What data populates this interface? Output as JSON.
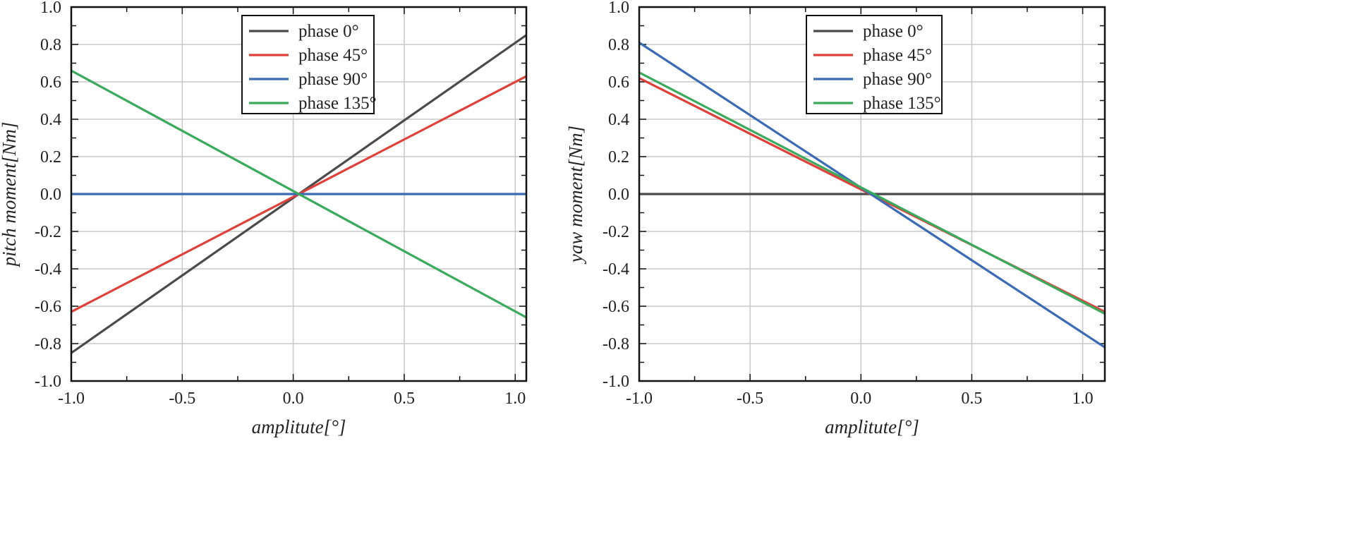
{
  "chart_data": [
    {
      "type": "line",
      "title": "",
      "xlabel": "amplitute[°]",
      "ylabel": "pitch moment[Nm]",
      "xlim": [
        -1.0,
        1.05
      ],
      "ylim": [
        -1.0,
        1.0
      ],
      "x_ticks": [
        -1.0,
        -0.5,
        0.0,
        0.5,
        1.0
      ],
      "x_tick_labels": [
        "-1.0",
        "-0.5",
        "0.0",
        "0.5",
        "1.0"
      ],
      "y_ticks": [
        1.0,
        0.8,
        0.6,
        0.4,
        0.2,
        0.0,
        -0.2,
        -0.4,
        -0.6,
        -0.8,
        -1.0
      ],
      "y_tick_labels": [
        "1.0",
        "0.8",
        "0.6",
        "0.4",
        "0.2",
        "0.0",
        "-0.2",
        "-0.4",
        "-0.6",
        "-0.8",
        "-1.0"
      ],
      "grid": true,
      "legend_position": "top-center",
      "series": [
        {
          "name": "phase 0°",
          "color": "#4a4a4a",
          "x": [
            -1.0,
            1.05
          ],
          "y": [
            -0.85,
            0.85
          ]
        },
        {
          "name": "phase 45°",
          "color": "#e0403a",
          "x": [
            -1.0,
            1.05
          ],
          "y": [
            -0.63,
            0.63
          ]
        },
        {
          "name": "phase 90°",
          "color": "#3b6bb5",
          "x": [
            -1.0,
            1.05
          ],
          "y": [
            0.0,
            0.0
          ]
        },
        {
          "name": "phase 135°",
          "color": "#3aaa5c",
          "x": [
            -1.0,
            1.05
          ],
          "y": [
            0.66,
            -0.66
          ]
        }
      ]
    },
    {
      "type": "line",
      "title": "",
      "xlabel": "amplitute[°]",
      "ylabel": "yaw moment[Nm]",
      "xlim": [
        -1.0,
        1.1
      ],
      "ylim": [
        -1.0,
        1.0
      ],
      "x_ticks": [
        -1.0,
        -0.5,
        0.0,
        0.5,
        1.0
      ],
      "x_tick_labels": [
        "-1.0",
        "-0.5",
        "0.0",
        "0.5",
        "1.0"
      ],
      "y_ticks": [
        1.0,
        0.8,
        0.6,
        0.4,
        0.2,
        0.0,
        -0.2,
        -0.4,
        -0.6,
        -0.8,
        -1.0
      ],
      "y_tick_labels": [
        "1.0",
        "0.8",
        "0.6",
        "0.4",
        "0.2",
        "0.0",
        "-0.2",
        "-0.4",
        "-0.6",
        "-0.8",
        "-1.0"
      ],
      "grid": true,
      "legend_position": "top-center",
      "series": [
        {
          "name": "phase 0°",
          "color": "#4a4a4a",
          "x": [
            -1.0,
            1.1
          ],
          "y": [
            0.0,
            0.0
          ]
        },
        {
          "name": "phase 45°",
          "color": "#e0403a",
          "x": [
            -1.0,
            1.1
          ],
          "y": [
            0.62,
            -0.63
          ]
        },
        {
          "name": "phase 90°",
          "color": "#3b6bb5",
          "x": [
            -1.0,
            1.1
          ],
          "y": [
            0.81,
            -0.82
          ]
        },
        {
          "name": "phase 135°",
          "color": "#3aaa5c",
          "x": [
            -1.0,
            1.1
          ],
          "y": [
            0.65,
            -0.64
          ]
        }
      ]
    }
  ]
}
